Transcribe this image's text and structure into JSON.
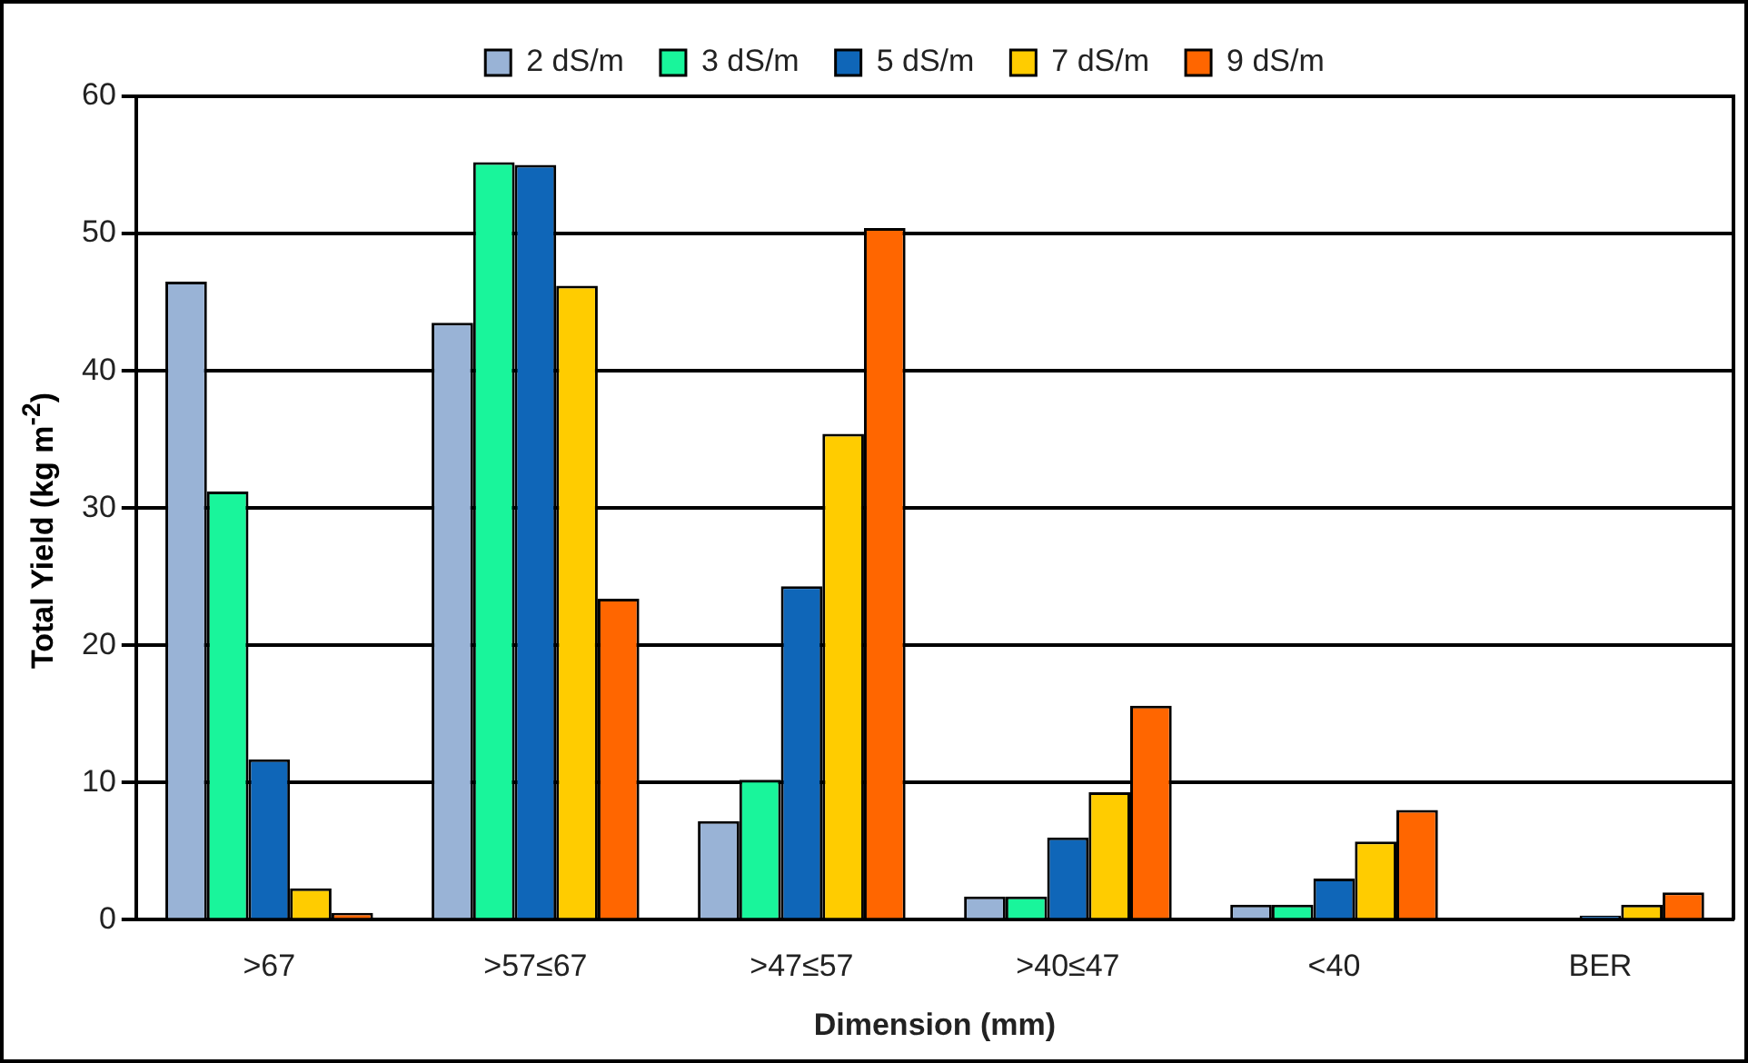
{
  "chart_data": {
    "type": "bar",
    "xlabel": "Dimension (mm)",
    "ylabel": "Total Yield (kg m$^{-2}$)",
    "categories": [
      ">67",
      ">57≤67",
      ">47≤57",
      ">40≤47",
      "<40",
      "BER"
    ],
    "series": [
      {
        "name": "2 dS/m",
        "color": "#99b3d6",
        "values": [
          46.5,
          43.5,
          7.2,
          1.7,
          1.1,
          null
        ]
      },
      {
        "name": "3 dS/m",
        "color": "#19f59b",
        "values": [
          31.2,
          55.2,
          10.2,
          1.7,
          1.1,
          null
        ]
      },
      {
        "name": "5 dS/m",
        "color": "#0f66b8",
        "values": [
          11.7,
          55,
          24.3,
          6,
          3,
          0.3
        ]
      },
      {
        "name": "7 dS/m",
        "color": "#ffcc00",
        "values": [
          2.3,
          46.2,
          35.4,
          9.3,
          5.7,
          1.1
        ]
      },
      {
        "name": "9 dS/m",
        "color": "#ff6600",
        "values": [
          0.5,
          23.4,
          50.4,
          15.6,
          8,
          2
        ]
      }
    ],
    "ylim": [
      0,
      60
    ],
    "yticks": [
      0,
      10,
      20,
      30,
      40,
      50,
      60
    ],
    "grid": "y",
    "legend": "top"
  }
}
